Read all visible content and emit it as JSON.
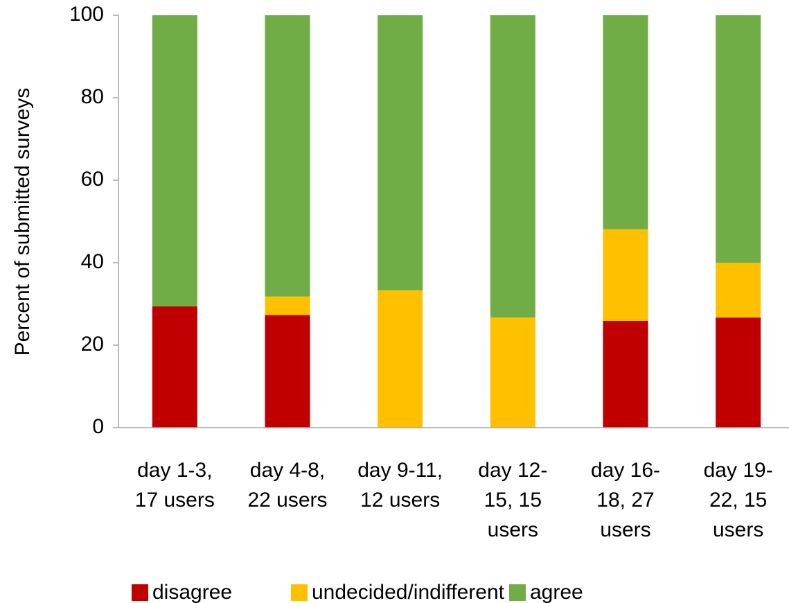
{
  "chart_data": {
    "type": "stacked_bar",
    "ylabel": "Percent of submitted surveys",
    "categories": [
      [
        "day 1-3,",
        "17 users"
      ],
      [
        "day 4-8,",
        "22 users"
      ],
      [
        "day 9-11,",
        "12 users"
      ],
      [
        "day 12-",
        "15, 15",
        "users"
      ],
      [
        "day 16-",
        "18, 27",
        "users"
      ],
      [
        "day 19-",
        "22, 15",
        "users"
      ]
    ],
    "series": [
      {
        "name": "disagree",
        "color": "#c00000",
        "values": [
          29.4,
          27.3,
          0,
          0,
          25.9,
          26.7
        ]
      },
      {
        "name": "undecided/indifferent",
        "color": "#ffc000",
        "values": [
          0,
          4.5,
          33.3,
          26.7,
          22.2,
          13.3
        ]
      },
      {
        "name": "agree",
        "color": "#70ad47",
        "values": [
          70.6,
          68.2,
          66.7,
          73.3,
          51.9,
          60
        ]
      }
    ],
    "ylim": [
      0,
      100
    ],
    "yticks": [
      0,
      20,
      40,
      60,
      80,
      100
    ],
    "legend": "bottom"
  }
}
